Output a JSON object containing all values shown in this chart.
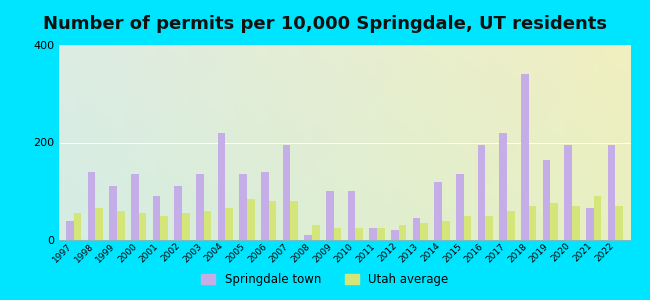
{
  "title": "Number of permits per 10,000 Springdale, UT residents",
  "years": [
    1997,
    1998,
    1999,
    2000,
    2001,
    2002,
    2003,
    2004,
    2005,
    2006,
    2007,
    2008,
    2009,
    2010,
    2011,
    2012,
    2013,
    2014,
    2015,
    2016,
    2017,
    2018,
    2019,
    2020,
    2021,
    2022
  ],
  "springdale": [
    40,
    140,
    110,
    135,
    90,
    110,
    135,
    220,
    135,
    140,
    195,
    10,
    100,
    100,
    25,
    20,
    45,
    120,
    135,
    195,
    220,
    340,
    165,
    195,
    65,
    195
  ],
  "utah_avg": [
    55,
    65,
    60,
    55,
    50,
    55,
    60,
    65,
    85,
    80,
    80,
    30,
    25,
    25,
    25,
    30,
    35,
    40,
    50,
    50,
    60,
    70,
    75,
    70,
    90,
    70
  ],
  "springdale_color": "#c5aee8",
  "utah_color": "#d4e57a",
  "background_outer": "#00e5ff",
  "ylim": [
    0,
    400
  ],
  "yticks": [
    0,
    200,
    400
  ],
  "title_fontsize": 13,
  "legend_labels": [
    "Springdale town",
    "Utah average"
  ]
}
